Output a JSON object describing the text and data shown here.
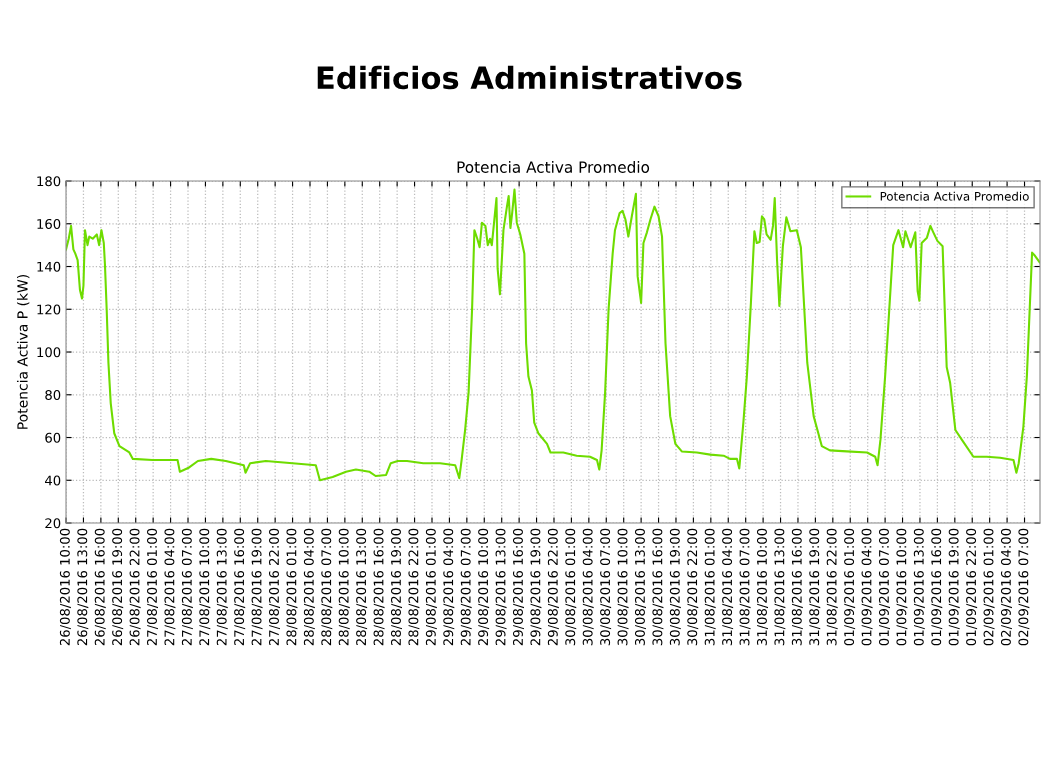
{
  "chart_data": {
    "type": "line",
    "title": "Edificios Administrativos",
    "subtitle": "Potencia Activa Promedio",
    "ylabel": "Potencia Activa P (kW)",
    "x": [
      "2016-08-26T10:00",
      "2016-08-26T10:28",
      "2016-08-26T10:52",
      "2016-08-26T11:16",
      "2016-08-26T11:36",
      "2016-08-26T12:00",
      "2016-08-26T12:24",
      "2016-08-26T12:45",
      "2016-08-26T13:00",
      "2016-08-26T13:16",
      "2016-08-26T13:42",
      "2016-08-26T14:00",
      "2016-08-26T14:36",
      "2016-08-26T15:18",
      "2016-08-26T15:42",
      "2016-08-26T16:06",
      "2016-08-26T16:30",
      "2016-08-26T16:42",
      "2016-08-26T17:00",
      "2016-08-26T17:18",
      "2016-08-26T17:42",
      "2016-08-26T18:18",
      "2016-08-26T19:12",
      "2016-08-26T20:54",
      "2016-08-26T21:30",
      "2016-08-27T00:54",
      "2016-08-27T05:12",
      "2016-08-27T05:36",
      "2016-08-27T07:12",
      "2016-08-27T08:42",
      "2016-08-27T11:00",
      "2016-08-27T13:30",
      "2016-08-27T16:36",
      "2016-08-27T16:54",
      "2016-08-27T17:42",
      "2016-08-27T20:24",
      "2016-08-28T01:00",
      "2016-08-28T05:00",
      "2016-08-28T05:42",
      "2016-08-28T07:54",
      "2016-08-28T10:12",
      "2016-08-28T11:54",
      "2016-08-28T14:12",
      "2016-08-28T15:18",
      "2016-08-28T17:06",
      "2016-08-28T17:54",
      "2016-08-28T19:06",
      "2016-08-28T20:42",
      "2016-08-28T23:30",
      "2016-08-29T02:24",
      "2016-08-29T05:00",
      "2016-08-29T05:42",
      "2016-08-29T06:06",
      "2016-08-29T06:42",
      "2016-08-29T07:18",
      "2016-08-29T07:54",
      "2016-08-29T08:18",
      "2016-08-29T08:48",
      "2016-08-29T09:12",
      "2016-08-29T09:36",
      "2016-08-29T10:12",
      "2016-08-29T10:36",
      "2016-08-29T11:00",
      "2016-08-29T11:18",
      "2016-08-29T11:42",
      "2016-08-29T12:06",
      "2016-08-29T12:18",
      "2016-08-29T12:42",
      "2016-08-29T13:18",
      "2016-08-29T13:54",
      "2016-08-29T14:12",
      "2016-08-29T14:30",
      "2016-08-29T14:48",
      "2016-08-29T15:12",
      "2016-08-29T15:36",
      "2016-08-29T16:12",
      "2016-08-29T16:54",
      "2016-08-29T17:12",
      "2016-08-29T17:36",
      "2016-08-29T18:12",
      "2016-08-29T18:36",
      "2016-08-29T19:18",
      "2016-08-29T20:48",
      "2016-08-29T21:24",
      "2016-08-29T23:36",
      "2016-08-30T01:54",
      "2016-08-30T04:12",
      "2016-08-30T05:24",
      "2016-08-30T05:48",
      "2016-08-30T06:12",
      "2016-08-30T06:48",
      "2016-08-30T07:24",
      "2016-08-30T08:06",
      "2016-08-30T08:30",
      "2016-08-30T09:18",
      "2016-08-30T09:48",
      "2016-08-30T10:18",
      "2016-08-30T10:48",
      "2016-08-30T11:24",
      "2016-08-30T12:06",
      "2016-08-30T12:24",
      "2016-08-30T13:00",
      "2016-08-30T13:24",
      "2016-08-30T14:00",
      "2016-08-30T14:36",
      "2016-08-30T15:18",
      "2016-08-30T16:00",
      "2016-08-30T16:36",
      "2016-08-30T17:12",
      "2016-08-30T18:00",
      "2016-08-30T18:54",
      "2016-08-30T20:00",
      "2016-08-30T22:36",
      "2016-08-31T00:54",
      "2016-08-31T03:12",
      "2016-08-31T04:18",
      "2016-08-31T05:30",
      "2016-08-31T05:54",
      "2016-08-31T06:36",
      "2016-08-31T07:12",
      "2016-08-31T07:54",
      "2016-08-31T08:30",
      "2016-08-31T08:54",
      "2016-08-31T09:24",
      "2016-08-31T09:48",
      "2016-08-31T10:12",
      "2016-08-31T10:36",
      "2016-08-31T11:18",
      "2016-08-31T11:42",
      "2016-08-31T12:00",
      "2016-08-31T12:24",
      "2016-08-31T12:48",
      "2016-08-31T13:24",
      "2016-08-31T14:00",
      "2016-08-31T14:42",
      "2016-08-31T15:48",
      "2016-08-31T16:30",
      "2016-08-31T17:36",
      "2016-08-31T18:42",
      "2016-08-31T20:06",
      "2016-08-31T21:30",
      "2016-09-01T00:24",
      "2016-09-01T03:54",
      "2016-09-01T05:18",
      "2016-09-01T05:42",
      "2016-09-01T06:12",
      "2016-09-01T07:00",
      "2016-09-01T07:54",
      "2016-09-01T08:24",
      "2016-09-01T09:18",
      "2016-09-01T10:06",
      "2016-09-01T10:30",
      "2016-09-01T11:24",
      "2016-09-01T12:12",
      "2016-09-01T12:36",
      "2016-09-01T12:54",
      "2016-09-01T13:18",
      "2016-09-01T14:12",
      "2016-09-01T14:48",
      "2016-09-01T15:18",
      "2016-09-01T16:00",
      "2016-09-01T16:54",
      "2016-09-01T17:36",
      "2016-09-01T18:12",
      "2016-09-01T19:06",
      "2016-09-01T20:12",
      "2016-09-01T22:12",
      "2016-09-02T00:30",
      "2016-09-02T02:48",
      "2016-09-02T05:06",
      "2016-09-02T05:36",
      "2016-09-02T06:00",
      "2016-09-02T06:48",
      "2016-09-02T07:24",
      "2016-09-02T08:18",
      "2016-09-02T08:48",
      "2016-09-02T09:36"
    ],
    "series": [
      {
        "name": "Potencia Activa Promedio",
        "color": "#6edc00",
        "values": [
          148,
          153,
          159,
          148,
          146,
          143,
          129,
          125,
          131,
          157,
          150,
          154,
          153,
          155,
          150,
          157,
          151,
          141,
          120,
          95,
          76,
          62,
          56,
          53,
          50,
          49.5,
          49.5,
          44,
          46,
          49,
          50,
          49,
          47,
          43.5,
          48,
          49,
          48,
          47,
          40,
          41.5,
          44,
          45,
          44,
          42,
          42.5,
          48,
          49,
          49,
          48,
          48,
          47,
          41,
          49.5,
          63.5,
          81,
          120,
          157,
          153,
          149,
          160.5,
          159,
          150,
          153,
          150,
          161,
          172,
          139,
          127,
          157,
          168,
          173,
          158,
          165,
          176,
          160.5,
          155,
          146,
          104,
          88.5,
          82,
          67,
          62,
          57,
          53,
          53,
          51.5,
          51,
          49.5,
          45,
          54,
          81,
          120,
          146,
          157,
          165,
          166,
          162,
          154,
          163.5,
          174,
          135.5,
          123,
          151,
          156,
          162,
          168,
          163.5,
          154,
          104,
          70,
          57,
          53.5,
          53,
          52,
          51.5,
          50,
          50,
          45.5,
          67,
          88.5,
          123,
          156.5,
          151,
          151.5,
          163.5,
          162,
          155,
          152.5,
          159,
          172,
          143,
          121.5,
          149.5,
          163,
          156.5,
          157,
          149,
          95,
          70,
          56,
          54,
          53.5,
          53,
          51,
          47,
          59,
          88.5,
          128,
          150,
          157,
          149,
          156.5,
          149,
          156,
          128.5,
          124,
          151,
          153.5,
          159,
          156,
          152,
          149.5,
          93,
          85.5,
          63.5,
          59,
          51,
          51,
          50.5,
          49.5,
          43.5,
          48,
          65,
          88.5,
          146.5,
          145,
          142
        ]
      }
    ],
    "xlim": [
      "2016-08-26T10:00",
      "2016-09-02T09:40"
    ],
    "xticks": [
      {
        "value": "2016-08-26T10:00",
        "label": "26/08/2016 10:00"
      },
      {
        "value": "2016-08-26T13:00",
        "label": "26/08/2016 13:00"
      },
      {
        "value": "2016-08-26T16:00",
        "label": "26/08/2016 16:00"
      },
      {
        "value": "2016-08-26T19:00",
        "label": "26/08/2016 19:00"
      },
      {
        "value": "2016-08-26T22:00",
        "label": "26/08/2016 22:00"
      },
      {
        "value": "2016-08-27T01:00",
        "label": "27/08/2016 01:00"
      },
      {
        "value": "2016-08-27T04:00",
        "label": "27/08/2016 04:00"
      },
      {
        "value": "2016-08-27T07:00",
        "label": "27/08/2016 07:00"
      },
      {
        "value": "2016-08-27T10:00",
        "label": "27/08/2016 10:00"
      },
      {
        "value": "2016-08-27T13:00",
        "label": "27/08/2016 13:00"
      },
      {
        "value": "2016-08-27T16:00",
        "label": "27/08/2016 16:00"
      },
      {
        "value": "2016-08-27T19:00",
        "label": "27/08/2016 19:00"
      },
      {
        "value": "2016-08-27T22:00",
        "label": "27/08/2016 22:00"
      },
      {
        "value": "2016-08-28T01:00",
        "label": "28/08/2016 01:00"
      },
      {
        "value": "2016-08-28T04:00",
        "label": "28/08/2016 04:00"
      },
      {
        "value": "2016-08-28T07:00",
        "label": "28/08/2016 07:00"
      },
      {
        "value": "2016-08-28T10:00",
        "label": "28/08/2016 10:00"
      },
      {
        "value": "2016-08-28T13:00",
        "label": "28/08/2016 13:00"
      },
      {
        "value": "2016-08-28T16:00",
        "label": "28/08/2016 16:00"
      },
      {
        "value": "2016-08-28T19:00",
        "label": "28/08/2016 19:00"
      },
      {
        "value": "2016-08-28T22:00",
        "label": "28/08/2016 22:00"
      },
      {
        "value": "2016-08-29T01:00",
        "label": "29/08/2016 01:00"
      },
      {
        "value": "2016-08-29T04:00",
        "label": "29/08/2016 04:00"
      },
      {
        "value": "2016-08-29T07:00",
        "label": "29/08/2016 07:00"
      },
      {
        "value": "2016-08-29T10:00",
        "label": "29/08/2016 10:00"
      },
      {
        "value": "2016-08-29T13:00",
        "label": "29/08/2016 13:00"
      },
      {
        "value": "2016-08-29T16:00",
        "label": "29/08/2016 16:00"
      },
      {
        "value": "2016-08-29T19:00",
        "label": "29/08/2016 19:00"
      },
      {
        "value": "2016-08-29T22:00",
        "label": "29/08/2016 22:00"
      },
      {
        "value": "2016-08-30T01:00",
        "label": "30/08/2016 01:00"
      },
      {
        "value": "2016-08-30T04:00",
        "label": "30/08/2016 04:00"
      },
      {
        "value": "2016-08-30T07:00",
        "label": "30/08/2016 07:00"
      },
      {
        "value": "2016-08-30T10:00",
        "label": "30/08/2016 10:00"
      },
      {
        "value": "2016-08-30T13:00",
        "label": "30/08/2016 13:00"
      },
      {
        "value": "2016-08-30T16:00",
        "label": "30/08/2016 16:00"
      },
      {
        "value": "2016-08-30T19:00",
        "label": "30/08/2016 19:00"
      },
      {
        "value": "2016-08-30T22:00",
        "label": "30/08/2016 22:00"
      },
      {
        "value": "2016-08-31T01:00",
        "label": "31/08/2016 01:00"
      },
      {
        "value": "2016-08-31T04:00",
        "label": "31/08/2016 04:00"
      },
      {
        "value": "2016-08-31T07:00",
        "label": "31/08/2016 07:00"
      },
      {
        "value": "2016-08-31T10:00",
        "label": "31/08/2016 10:00"
      },
      {
        "value": "2016-08-31T13:00",
        "label": "31/08/2016 13:00"
      },
      {
        "value": "2016-08-31T16:00",
        "label": "31/08/2016 16:00"
      },
      {
        "value": "2016-08-31T19:00",
        "label": "31/08/2016 19:00"
      },
      {
        "value": "2016-08-31T22:00",
        "label": "31/08/2016 22:00"
      },
      {
        "value": "2016-09-01T01:00",
        "label": "01/09/2016 01:00"
      },
      {
        "value": "2016-09-01T04:00",
        "label": "01/09/2016 04:00"
      },
      {
        "value": "2016-09-01T07:00",
        "label": "01/09/2016 07:00"
      },
      {
        "value": "2016-09-01T10:00",
        "label": "01/09/2016 10:00"
      },
      {
        "value": "2016-09-01T13:00",
        "label": "01/09/2016 13:00"
      },
      {
        "value": "2016-09-01T16:00",
        "label": "01/09/2016 16:00"
      },
      {
        "value": "2016-09-01T19:00",
        "label": "01/09/2016 19:00"
      },
      {
        "value": "2016-09-01T22:00",
        "label": "01/09/2016 22:00"
      },
      {
        "value": "2016-09-02T01:00",
        "label": "02/09/2016 01:00"
      },
      {
        "value": "2016-09-02T04:00",
        "label": "02/09/2016 04:00"
      },
      {
        "value": "2016-09-02T07:00",
        "label": "02/09/2016 07:00"
      }
    ],
    "ylim": [
      20,
      180
    ],
    "yticks": [
      20,
      40,
      60,
      80,
      100,
      120,
      140,
      160,
      180
    ],
    "grid": true,
    "legend": "top right",
    "marker": "none",
    "line_style": "solid"
  }
}
